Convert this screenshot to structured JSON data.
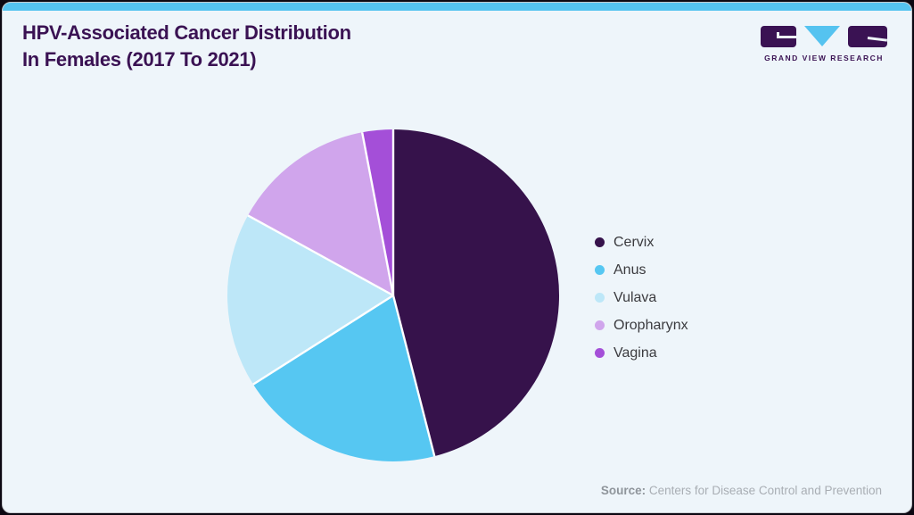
{
  "page": {
    "title_line1": "HPV-Associated Cancer Distribution",
    "title_line2": "In Females (2017 To 2021)",
    "source_label": "Source:",
    "source_value": "Centers for Disease Control and Prevention"
  },
  "branding": {
    "logo_text": "GRAND VIEW RESEARCH",
    "logo_dark_color": "#3A1253",
    "logo_accent_color": "#55C3F0"
  },
  "theme": {
    "card_background": "#EEF5FA",
    "accent_bar_color": "#55C3F0",
    "title_color": "#3A1253",
    "legend_text_color": "#3B3B3F",
    "source_text_color": "#A9AEB4",
    "slice_separator_color": "#FFFFFF"
  },
  "chart_data": {
    "type": "pie",
    "title": "HPV-Associated Cancer Distribution In Females (2017 To 2021)",
    "start_angle_deg": 0,
    "direction": "clockwise",
    "legend_position": "right",
    "slices": [
      {
        "label": "Cervix",
        "value_pct": 46,
        "color": "#36124B"
      },
      {
        "label": "Anus",
        "value_pct": 20,
        "color": "#56C7F2"
      },
      {
        "label": "Vulava",
        "value_pct": 17,
        "color": "#BDE7F8"
      },
      {
        "label": "Oropharynx",
        "value_pct": 14,
        "color": "#D0A5EC"
      },
      {
        "label": "Vagina",
        "value_pct": 3,
        "color": "#A44FD8"
      }
    ]
  }
}
